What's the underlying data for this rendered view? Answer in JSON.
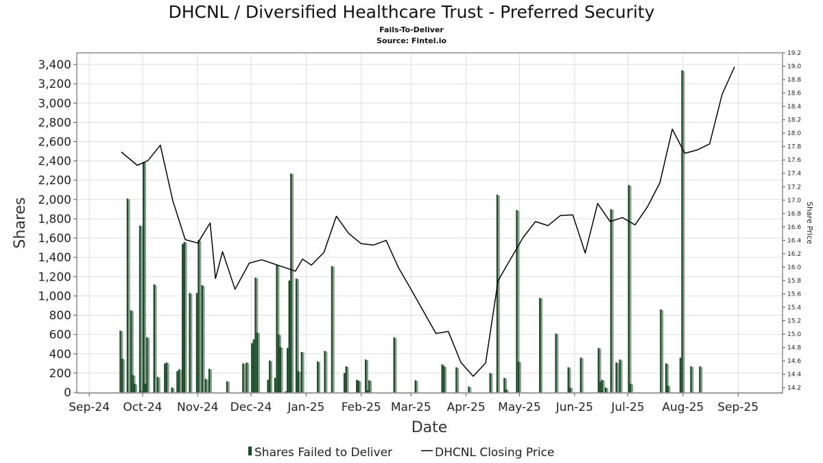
{
  "chart_data": {
    "type": "bar+line",
    "title": "DHCNL / Diversified Healthcare Trust - Preferred Security",
    "subtitle_1": "Fails-To-Deliver",
    "subtitle_2": "Source: Fintel.io",
    "xlabel": "Date",
    "ylabel": "Shares",
    "y2label": "Share Price",
    "x_ticks": [
      {
        "date": "2024-09-01",
        "label": "Sep-24"
      },
      {
        "date": "2024-10-01",
        "label": "Oct-24"
      },
      {
        "date": "2024-11-01",
        "label": "Nov-24"
      },
      {
        "date": "2024-12-01",
        "label": "Dec-24"
      },
      {
        "date": "2025-01-01",
        "label": "Jan-25"
      },
      {
        "date": "2025-02-01",
        "label": "Feb-25"
      },
      {
        "date": "2025-03-01",
        "label": "Mar-25"
      },
      {
        "date": "2025-04-01",
        "label": "Apr-25"
      },
      {
        "date": "2025-05-01",
        "label": "May-25"
      },
      {
        "date": "2025-06-01",
        "label": "Jun-25"
      },
      {
        "date": "2025-07-01",
        "label": "Jul-25"
      },
      {
        "date": "2025-08-01",
        "label": "Aug-25"
      },
      {
        "date": "2025-09-01",
        "label": "Sep-25"
      }
    ],
    "x_range": [
      "2024-08-25",
      "2025-09-26"
    ],
    "y_ticks": [
      "0",
      "200",
      "400",
      "600",
      "800",
      "1,000",
      "1,200",
      "1,400",
      "1,600",
      "1,800",
      "2,000",
      "2,200",
      "2,400",
      "2,600",
      "2,800",
      "3,000",
      "3,200",
      "3,400"
    ],
    "ylim": [
      0,
      3500
    ],
    "y2_ticks": [
      "14.2",
      "14.4",
      "14.6",
      "14.8",
      "15.0",
      "15.2",
      "15.4",
      "15.6",
      "15.8",
      "16.0",
      "16.2",
      "16.4",
      "16.6",
      "16.8",
      "17.0",
      "17.2",
      "17.4",
      "17.6",
      "17.8",
      "18.0",
      "18.2",
      "18.4",
      "18.6",
      "18.8",
      "19.0",
      "19.2"
    ],
    "y2lim": [
      14.12,
      19.2
    ],
    "grid": true,
    "legend_position": "bottom",
    "series": [
      {
        "name": "Shares Failed to Deliver",
        "type": "bar",
        "color": "#1b4d2a",
        "points": [
          [
            "2024-09-19",
            640
          ],
          [
            "2024-09-20",
            350
          ],
          [
            "2024-09-23",
            2010
          ],
          [
            "2024-09-25",
            850
          ],
          [
            "2024-09-26",
            180
          ],
          [
            "2024-09-27",
            90
          ],
          [
            "2024-09-30",
            1730
          ],
          [
            "2024-10-01",
            10
          ],
          [
            "2024-10-02",
            2390
          ],
          [
            "2024-10-03",
            90
          ],
          [
            "2024-10-04",
            570
          ],
          [
            "2024-10-08",
            1120
          ],
          [
            "2024-10-10",
            160
          ],
          [
            "2024-10-14",
            300
          ],
          [
            "2024-10-15",
            310
          ],
          [
            "2024-10-18",
            50
          ],
          [
            "2024-10-21",
            220
          ],
          [
            "2024-10-22",
            240
          ],
          [
            "2024-10-24",
            1540
          ],
          [
            "2024-10-25",
            1560
          ],
          [
            "2024-10-28",
            1030
          ],
          [
            "2024-11-01",
            1030
          ],
          [
            "2024-11-02",
            1580
          ],
          [
            "2024-11-04",
            1110
          ],
          [
            "2024-11-06",
            140
          ],
          [
            "2024-11-08",
            245
          ],
          [
            "2024-11-18",
            115
          ],
          [
            "2024-11-27",
            300
          ],
          [
            "2024-11-29",
            310
          ],
          [
            "2024-12-02",
            510
          ],
          [
            "2024-12-03",
            550
          ],
          [
            "2024-12-04",
            1190
          ],
          [
            "2024-12-05",
            620
          ],
          [
            "2024-12-11",
            130
          ],
          [
            "2024-12-12",
            330
          ],
          [
            "2024-12-15",
            150
          ],
          [
            "2024-12-16",
            1320
          ],
          [
            "2024-12-17",
            600
          ],
          [
            "2024-12-18",
            470
          ],
          [
            "2024-12-21",
            10
          ],
          [
            "2024-12-22",
            460
          ],
          [
            "2024-12-23",
            1160
          ],
          [
            "2024-12-24",
            2270
          ],
          [
            "2024-12-27",
            1180
          ],
          [
            "2024-12-28",
            220
          ],
          [
            "2024-12-30",
            420
          ],
          [
            "2025-01-08",
            320
          ],
          [
            "2025-01-12",
            430
          ],
          [
            "2025-01-16",
            1310
          ],
          [
            "2025-01-23",
            200
          ],
          [
            "2025-01-24",
            270
          ],
          [
            "2025-01-30",
            130
          ],
          [
            "2025-01-31",
            120
          ],
          [
            "2025-02-04",
            340
          ],
          [
            "2025-02-05",
            20
          ],
          [
            "2025-02-06",
            125
          ],
          [
            "2025-02-20",
            570
          ],
          [
            "2025-03-04",
            125
          ],
          [
            "2025-03-19",
            290
          ],
          [
            "2025-03-20",
            270
          ],
          [
            "2025-03-27",
            260
          ],
          [
            "2025-04-03",
            60
          ],
          [
            "2025-04-15",
            200
          ],
          [
            "2025-04-19",
            2050
          ],
          [
            "2025-04-23",
            150
          ],
          [
            "2025-04-24",
            30
          ],
          [
            "2025-04-30",
            1890
          ],
          [
            "2025-05-01",
            320
          ],
          [
            "2025-05-13",
            980
          ],
          [
            "2025-05-22",
            610
          ],
          [
            "2025-05-29",
            260
          ],
          [
            "2025-05-30",
            50
          ],
          [
            "2025-06-05",
            360
          ],
          [
            "2025-06-15",
            460
          ],
          [
            "2025-06-16",
            110
          ],
          [
            "2025-06-17",
            130
          ],
          [
            "2025-06-19",
            50
          ],
          [
            "2025-06-22",
            1900
          ],
          [
            "2025-06-25",
            310
          ],
          [
            "2025-06-27",
            340
          ],
          [
            "2025-07-02",
            2150
          ],
          [
            "2025-07-03",
            90
          ],
          [
            "2025-07-20",
            860
          ],
          [
            "2025-07-23",
            300
          ],
          [
            "2025-07-24",
            70
          ],
          [
            "2025-07-31",
            360
          ],
          [
            "2025-08-01",
            3340
          ],
          [
            "2025-08-06",
            270
          ],
          [
            "2025-08-11",
            270
          ]
        ]
      },
      {
        "name": "DHCNL Closing Price",
        "type": "line",
        "color": "#000000",
        "points": [
          [
            "2024-09-19",
            17.72
          ],
          [
            "2024-09-28",
            17.52
          ],
          [
            "2024-10-04",
            17.59
          ],
          [
            "2024-10-11",
            17.82
          ],
          [
            "2024-10-18",
            16.99
          ],
          [
            "2024-10-25",
            16.41
          ],
          [
            "2024-11-01",
            16.36
          ],
          [
            "2024-11-08",
            16.66
          ],
          [
            "2024-11-11",
            15.83
          ],
          [
            "2024-11-15",
            16.23
          ],
          [
            "2024-11-22",
            15.67
          ],
          [
            "2024-11-30",
            16.06
          ],
          [
            "2024-12-07",
            16.11
          ],
          [
            "2024-12-26",
            15.94
          ],
          [
            "2024-12-30",
            16.12
          ],
          [
            "2025-01-04",
            16.03
          ],
          [
            "2025-01-11",
            16.22
          ],
          [
            "2025-01-18",
            16.76
          ],
          [
            "2025-01-25",
            16.5
          ],
          [
            "2025-02-01",
            16.35
          ],
          [
            "2025-02-08",
            16.33
          ],
          [
            "2025-02-15",
            16.4
          ],
          [
            "2025-02-22",
            15.99
          ],
          [
            "2025-03-01",
            15.67
          ],
          [
            "2025-03-08",
            15.34
          ],
          [
            "2025-03-15",
            15.01
          ],
          [
            "2025-03-22",
            15.04
          ],
          [
            "2025-03-29",
            14.58
          ],
          [
            "2025-04-05",
            14.37
          ],
          [
            "2025-04-12",
            14.57
          ],
          [
            "2025-04-19",
            15.8
          ],
          [
            "2025-04-26",
            16.12
          ],
          [
            "2025-05-03",
            16.44
          ],
          [
            "2025-05-10",
            16.68
          ],
          [
            "2025-05-17",
            16.62
          ],
          [
            "2025-05-24",
            16.77
          ],
          [
            "2025-05-31",
            16.78
          ],
          [
            "2025-06-07",
            16.21
          ],
          [
            "2025-06-14",
            16.95
          ],
          [
            "2025-06-21",
            16.68
          ],
          [
            "2025-06-28",
            16.74
          ],
          [
            "2025-07-05",
            16.63
          ],
          [
            "2025-07-12",
            16.9
          ],
          [
            "2025-07-19",
            17.26
          ],
          [
            "2025-07-26",
            18.06
          ],
          [
            "2025-08-02",
            17.7
          ],
          [
            "2025-08-09",
            17.75
          ],
          [
            "2025-08-16",
            17.84
          ],
          [
            "2025-08-23",
            18.58
          ],
          [
            "2025-08-30",
            18.99
          ]
        ]
      }
    ]
  }
}
